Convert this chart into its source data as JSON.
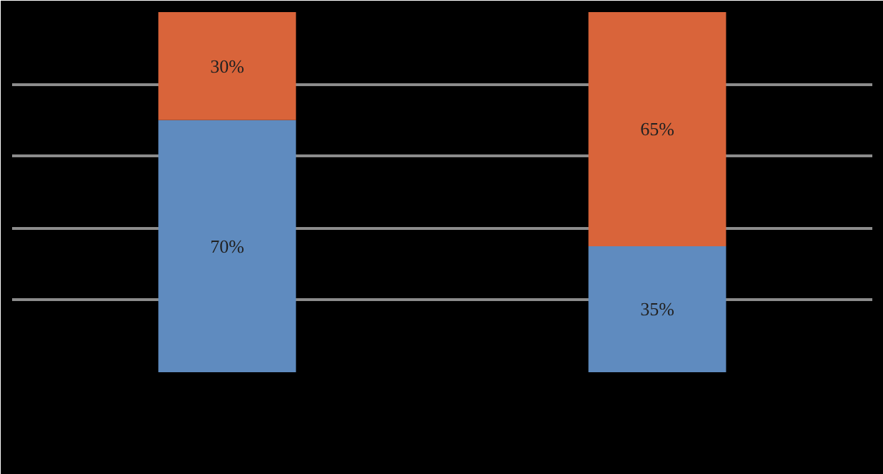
{
  "chart_data": {
    "type": "bar",
    "stacked": true,
    "categories": [
      null,
      null
    ],
    "series": [
      {
        "color": "#5f8bbf",
        "values": [
          70,
          35
        ],
        "value_labels": [
          "70%",
          "35%"
        ]
      },
      {
        "color": "#d9643a",
        "values": [
          30,
          65
        ],
        "value_labels": [
          "30%",
          "65%"
        ]
      }
    ],
    "tick_labels": false,
    "grid": "y"
  }
}
